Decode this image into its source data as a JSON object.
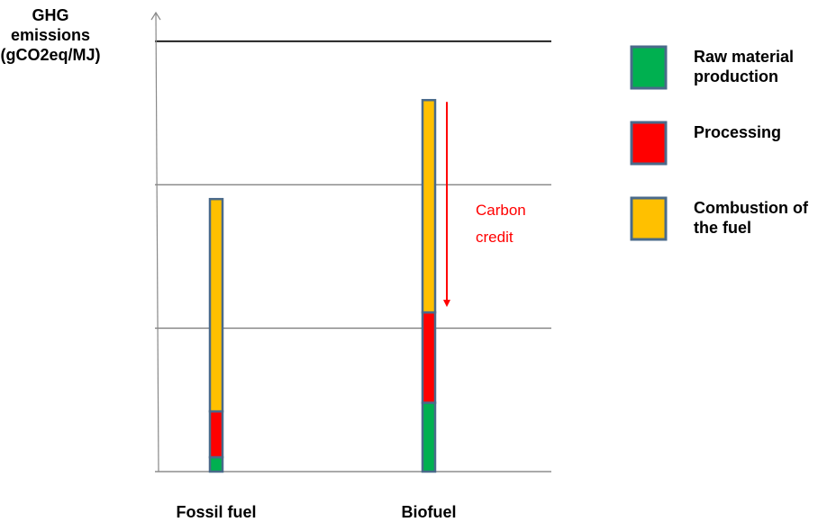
{
  "chart_data": {
    "type": "stacked_bar",
    "y_label": "GHG emissions (gCO2eq/MJ)",
    "categories": [
      "Fossil fuel",
      "Biofuel"
    ],
    "series": [
      {
        "name": "Raw material production",
        "color": "#00b050",
        "values": [
          0.1,
          0.48
        ]
      },
      {
        "name": "Processing",
        "color": "#ff0000",
        "values": [
          0.32,
          0.63
        ]
      },
      {
        "name": "Combustion of the fuel",
        "color": "#ffc000",
        "values": [
          1.48,
          1.48
        ]
      }
    ],
    "annotation": "Carbon credit",
    "ylim": [
      0,
      3.2
    ],
    "yticks": [
      0,
      1,
      2,
      3
    ],
    "grid": true
  }
}
